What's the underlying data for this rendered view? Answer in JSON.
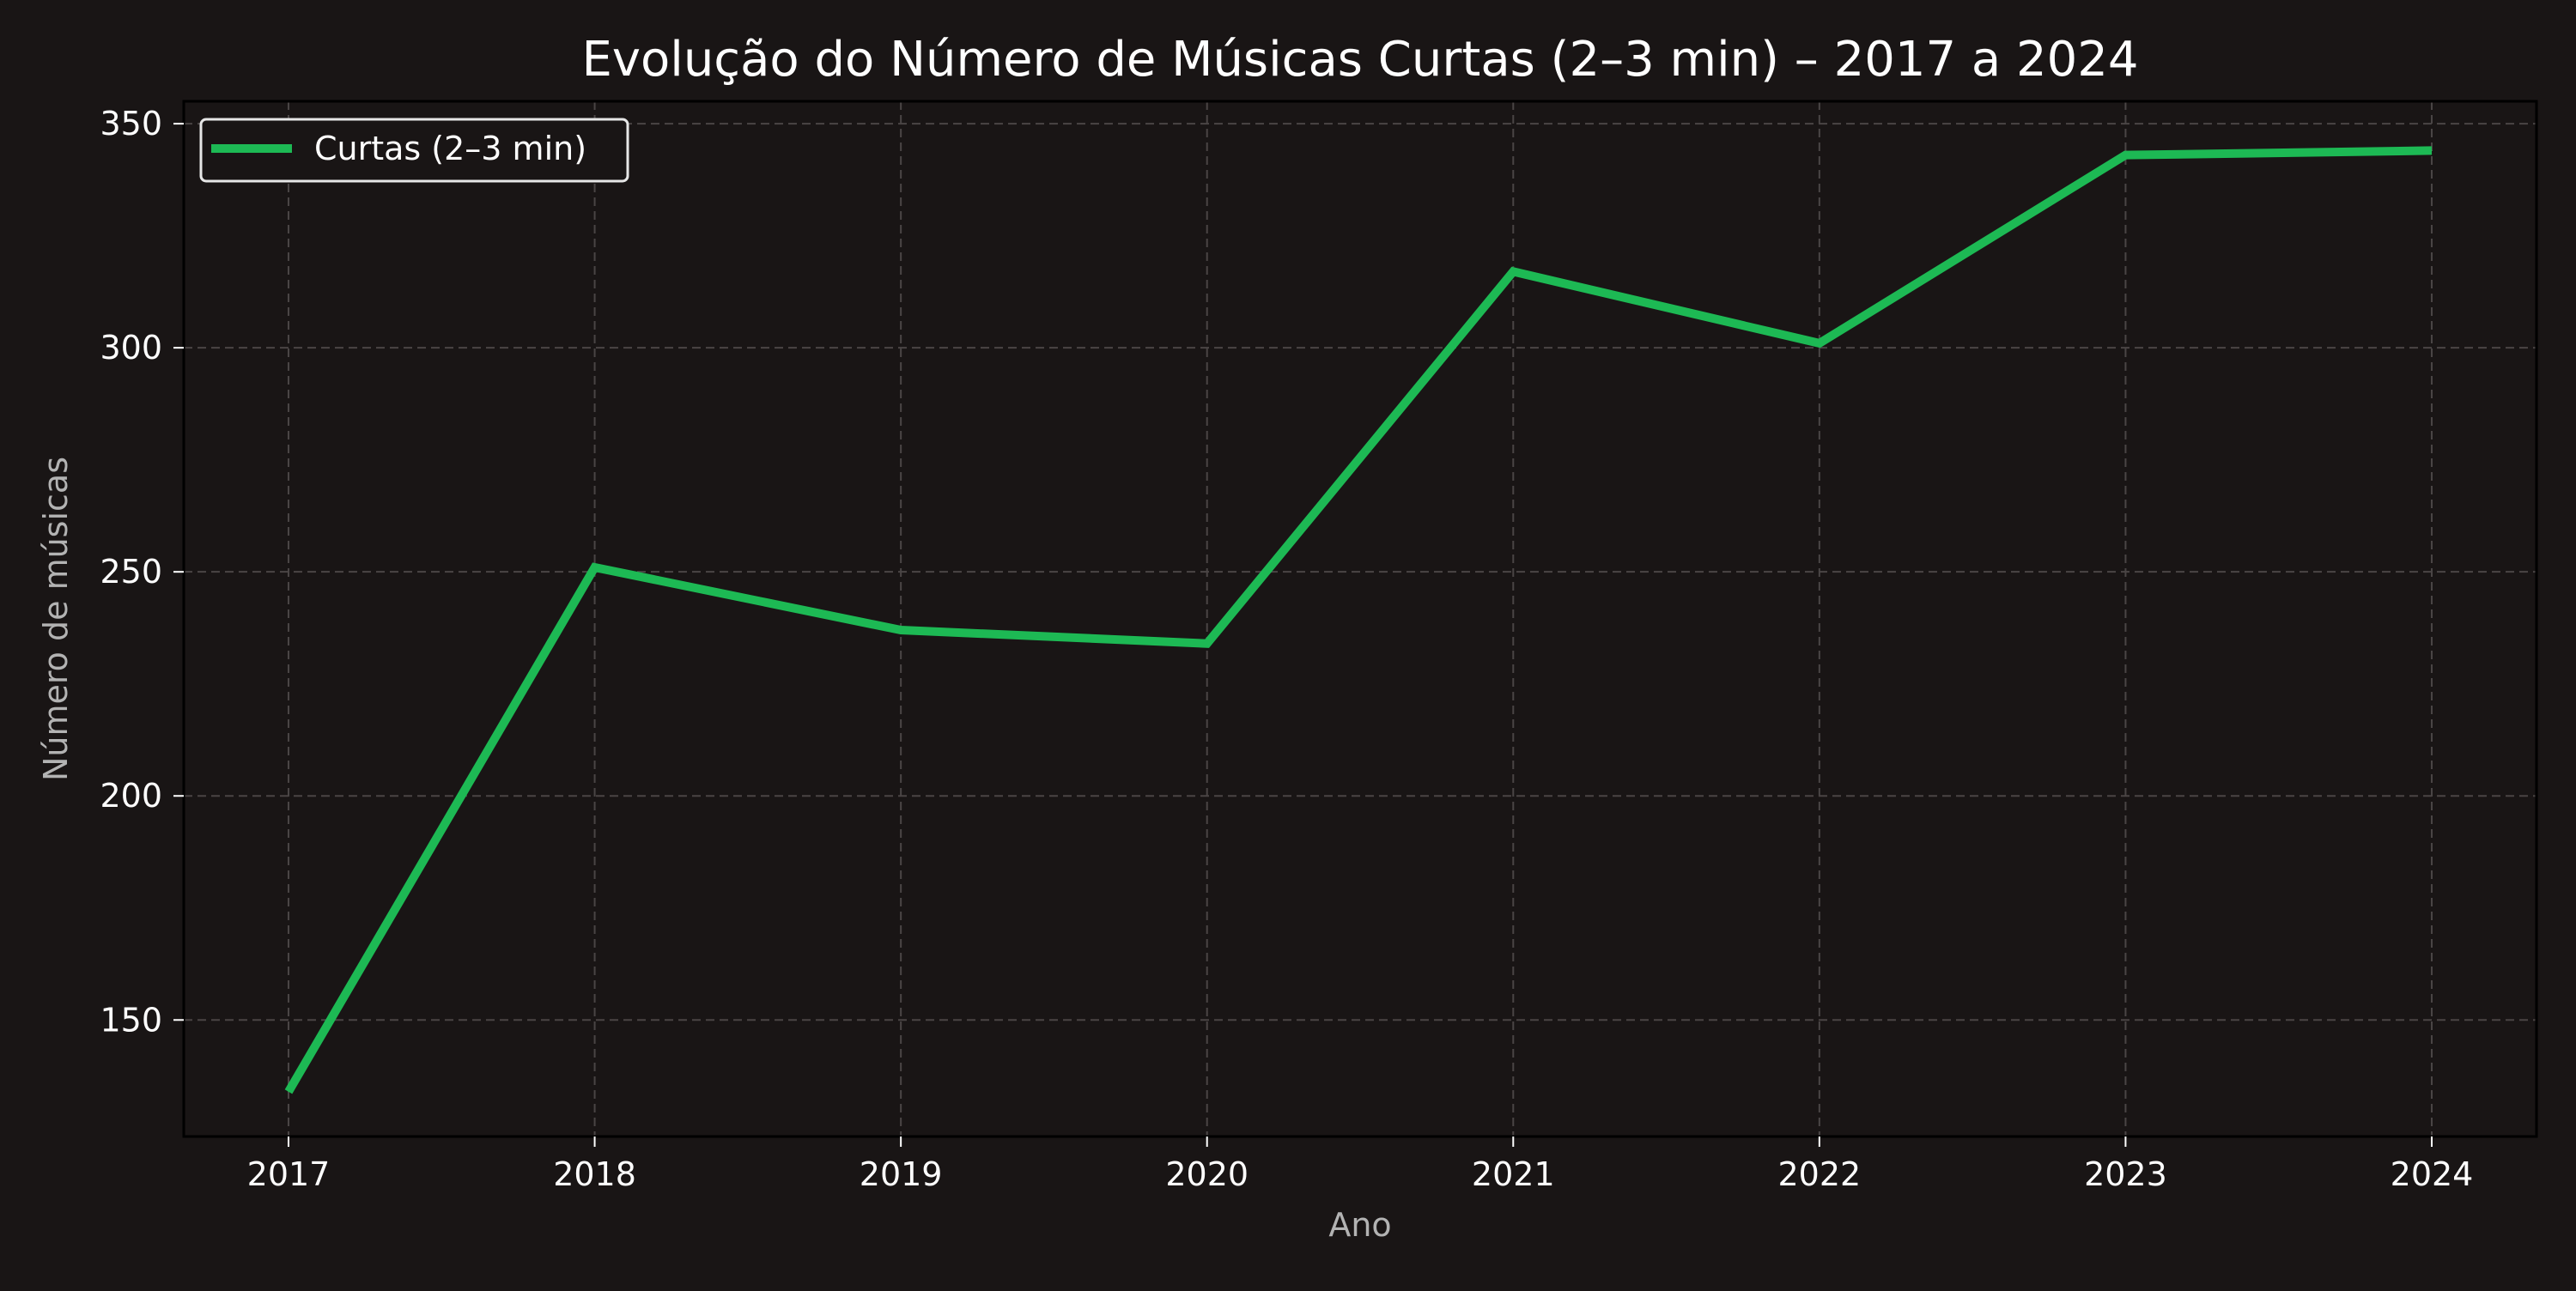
{
  "chart_data": {
    "type": "line",
    "title": "Evolução do Número de Músicas Curtas (2–3 min) – 2017 a 2024",
    "xlabel": "Ano",
    "ylabel": "Número de músicas",
    "x": [
      "2017",
      "2018",
      "2019",
      "2020",
      "2021",
      "2022",
      "2023",
      "2024"
    ],
    "series": [
      {
        "name": "Curtas (2–3 min)",
        "values": [
          134,
          251,
          237,
          234,
          317,
          301,
          343,
          344
        ]
      }
    ],
    "yticks": [
      150,
      200,
      250,
      300,
      350
    ],
    "ylim": [
      124,
      355
    ],
    "grid": true,
    "legend_position": "top-left",
    "colors": {
      "background": "#191515",
      "line": "#1DB954",
      "text": "#ffffff",
      "label": "#b3b3b3",
      "grid": "#4a4545",
      "axes": "#000000",
      "legend_border": "#e6e6e6"
    }
  }
}
